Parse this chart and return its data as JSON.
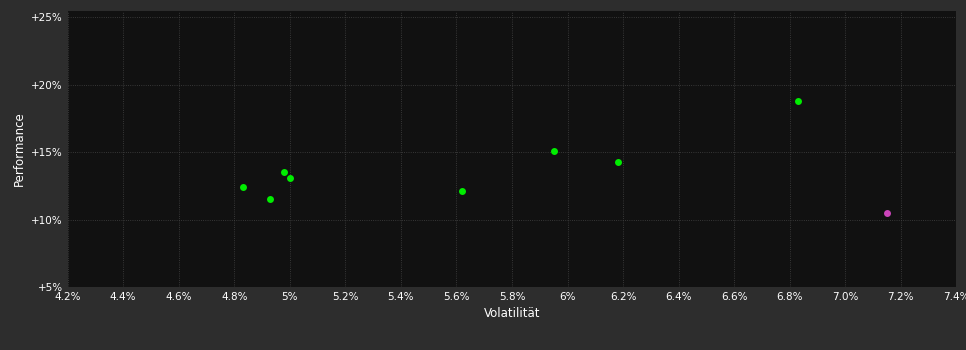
{
  "outer_background": "#2d2d2d",
  "plot_background": "#111111",
  "grid_color": "#444444",
  "text_color": "#ffffff",
  "xlabel": "Volatilität",
  "ylabel": "Performance",
  "xlim": [
    0.042,
    0.074
  ],
  "ylim": [
    0.05,
    0.255
  ],
  "xticks": [
    0.042,
    0.044,
    0.046,
    0.048,
    0.05,
    0.052,
    0.054,
    0.056,
    0.058,
    0.06,
    0.062,
    0.064,
    0.066,
    0.068,
    0.07,
    0.072,
    0.074
  ],
  "yticks": [
    0.05,
    0.1,
    0.15,
    0.2,
    0.25
  ],
  "ytick_labels": [
    "+5%",
    "+10%",
    "+15%",
    "+20%",
    "+25%"
  ],
  "green_points": [
    [
      0.0483,
      0.124
    ],
    [
      0.0493,
      0.115
    ],
    [
      0.0498,
      0.135
    ],
    [
      0.05,
      0.131
    ],
    [
      0.0562,
      0.121
    ],
    [
      0.0595,
      0.151
    ],
    [
      0.0618,
      0.143
    ],
    [
      0.0683,
      0.188
    ]
  ],
  "magenta_points": [
    [
      0.0715,
      0.105
    ]
  ],
  "green_color": "#00ee00",
  "magenta_color": "#cc44bb",
  "marker_size": 25,
  "fig_width": 9.66,
  "fig_height": 3.5,
  "dpi": 100
}
